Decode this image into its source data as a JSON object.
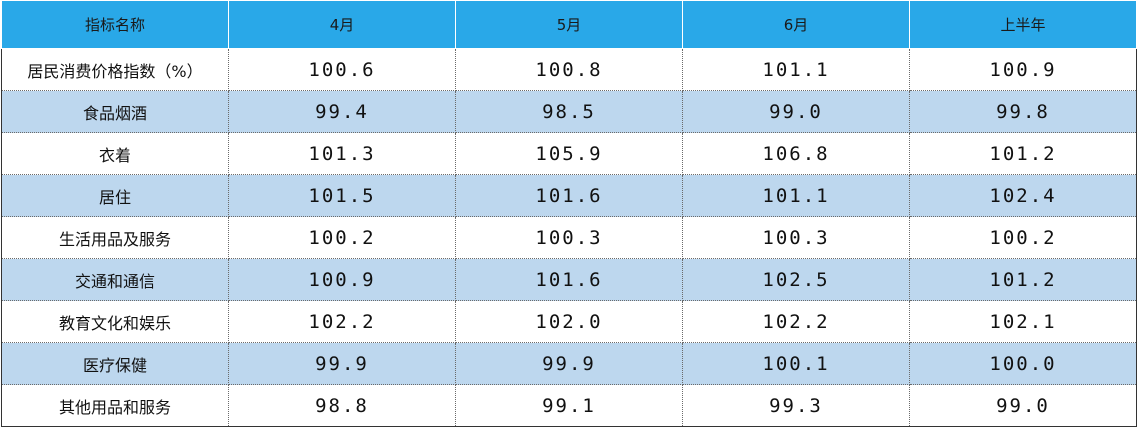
{
  "table": {
    "header": [
      "指标名称",
      "4月",
      "5月",
      "6月",
      "上半年"
    ],
    "rows": [
      [
        "居民消费价格指数（%）",
        "100.6",
        "100.8",
        "101.1",
        "100.9"
      ],
      [
        "食品烟酒",
        "99.4",
        "98.5",
        "99.0",
        "99.8"
      ],
      [
        "衣着",
        "101.3",
        "105.9",
        "106.8",
        "101.2"
      ],
      [
        "居住",
        "101.5",
        "101.6",
        "101.1",
        "102.4"
      ],
      [
        "生活用品及服务",
        "100.2",
        "100.3",
        "100.3",
        "100.2"
      ],
      [
        "交通和通信",
        "100.9",
        "101.6",
        "102.5",
        "101.2"
      ],
      [
        "教育文化和娱乐",
        "102.2",
        "102.0",
        "102.2",
        "102.1"
      ],
      [
        "医疗保健",
        "99.9",
        "99.9",
        "100.1",
        "100.0"
      ],
      [
        "其他用品和服务",
        "98.8",
        "99.1",
        "99.3",
        "99.0"
      ]
    ]
  }
}
